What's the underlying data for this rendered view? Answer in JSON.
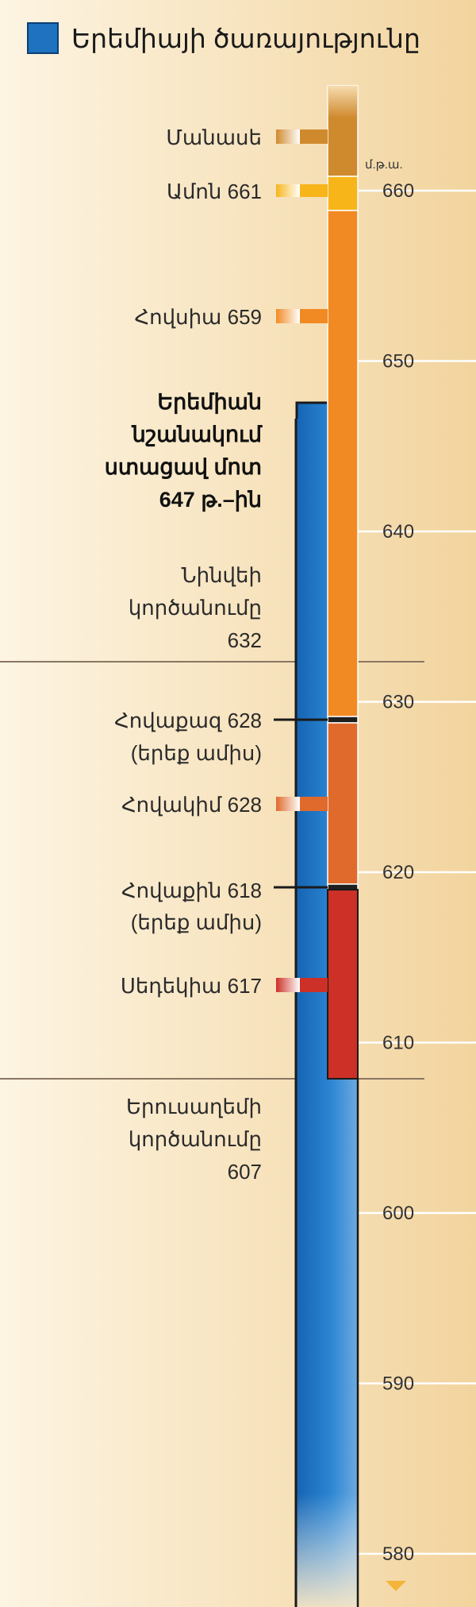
{
  "title": "Երեմիայի ծառայությունը",
  "legend": {
    "label": "Երեմիայի ծառայությունը",
    "color": "#1f72bf"
  },
  "axis": {
    "unit": "մ.թ.ա.",
    "ticks": [
      660,
      650,
      640,
      630,
      620,
      610,
      600,
      590,
      580
    ]
  },
  "reigns": [
    {
      "name": "Մանասե",
      "start": 667,
      "end": 661,
      "color": "#d08a2e"
    },
    {
      "name": "Ամոն 661",
      "start": 661,
      "end": 659,
      "color": "#f7b51a"
    },
    {
      "name": "Հովսիա 659",
      "start": 659,
      "end": 628.9,
      "color": "#f28a24"
    },
    {
      "name": "Հովաքազ 628 (երեք ամիս)",
      "start": 628.9,
      "end": 628.6,
      "color": "#1f1f1f"
    },
    {
      "name": "Հովակիմ 628",
      "start": 628.6,
      "end": 619,
      "color": "#e06a2c"
    },
    {
      "name": "Հովաքին 618 (երեք ամիս)",
      "start": 619,
      "end": 618.7,
      "color": "#1f1f1f"
    },
    {
      "name": "Սեդեկիա 617",
      "start": 618.7,
      "end": 607,
      "color": "#cc3026"
    }
  ],
  "labels": {
    "manasseh": "Մանասե",
    "amon": "Ամոն 661",
    "josiah": "Հովսիա 659",
    "jeremiah_lines": [
      "Երեմիան",
      "նշանակում",
      "ստացավ մոտ",
      "647 թ.–ին"
    ],
    "nineveh_lines": [
      "Նինվեի",
      "կործանումը",
      "632"
    ],
    "jehoahaz_lines": [
      "Հովաքազ 628",
      "(երեք ամիս)"
    ],
    "jehoiakim": "Հովակիմ 628",
    "jehoiachin_lines": [
      "Հովաքին 618",
      "(երեք ամիս)"
    ],
    "zedekiah": "Սեդեկիա 617",
    "jerusalem_lines": [
      "Երուսաղեմի",
      "կործանումը",
      "607"
    ]
  },
  "events": {
    "jeremiah_start": 647,
    "nineveh_fall": 632,
    "jerusalem_fall": 607
  },
  "colors": {
    "jeremiah_bar": "#1f72bf",
    "event_line": "#8a7663",
    "grid_line": "#ffffff"
  }
}
